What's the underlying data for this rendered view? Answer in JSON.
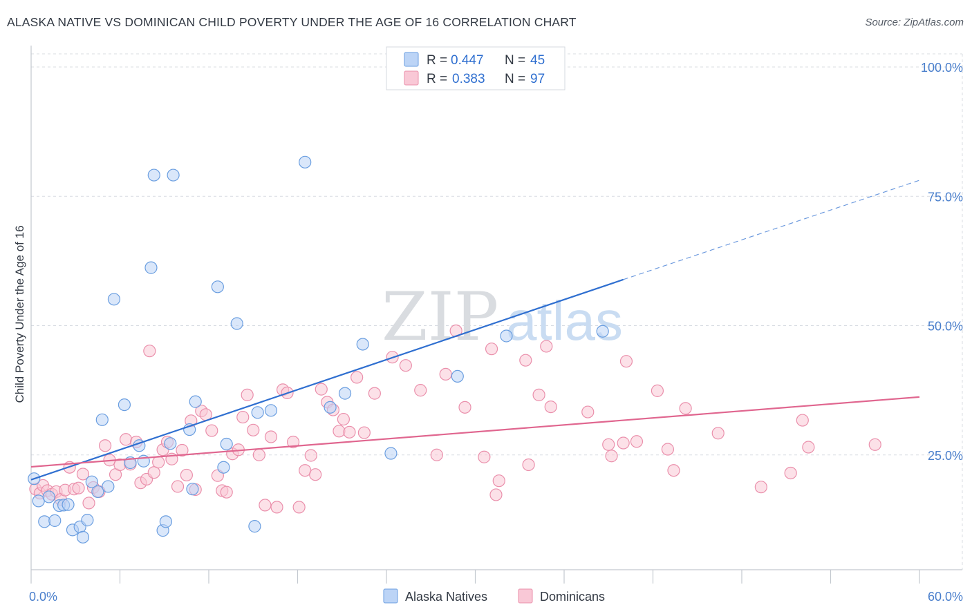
{
  "title": "ALASKA NATIVE VS DOMINICAN CHILD POVERTY UNDER THE AGE OF 16 CORRELATION CHART",
  "source": "Source: ZipAtlas.com",
  "watermark": {
    "zip": "ZIP",
    "atlas": "atlas"
  },
  "legend": {
    "r_label": "R =",
    "n_label": "N =",
    "rows": [
      {
        "r": "0.447",
        "n": "45"
      },
      {
        "r": "0.383",
        "n": "97"
      }
    ]
  },
  "colors": {
    "blue_fill": "#bcd4f6",
    "blue_stroke": "#6a9ee0",
    "blue_line": "#2f6fd0",
    "pink_fill": "#f9c8d6",
    "pink_stroke": "#ea8fab",
    "pink_line": "#e0668f",
    "grid": "#d8dce2"
  },
  "chart_data": {
    "type": "scatter",
    "title": "ALASKA NATIVE VS DOMINICAN CHILD POVERTY UNDER THE AGE OF 16 CORRELATION CHART",
    "xlabel": "",
    "ylabel": "Child Poverty Under the Age of 16",
    "xlim": [
      0,
      60
    ],
    "ylim": [
      0,
      105
    ],
    "x_tick_labels": [
      "0.0%",
      "60.0%"
    ],
    "y_ticks": [
      25,
      50,
      75,
      100
    ],
    "y_tick_labels": [
      "25.0%",
      "50.0%",
      "75.0%",
      "100.0%"
    ],
    "grid": true,
    "legend_position": "top-center",
    "series": [
      {
        "name": "Alaska Natives",
        "r": 0.447,
        "n": 45,
        "trend": {
          "x0": 0,
          "y0": 20.2,
          "x1": 40,
          "y1": 58.9,
          "dashed_to_x": 60,
          "dashed_to_y": 78.1
        },
        "points": [
          [
            0.2,
            20.4
          ],
          [
            0.5,
            16.1
          ],
          [
            0.9,
            12.1
          ],
          [
            1.2,
            16.9
          ],
          [
            1.6,
            12.3
          ],
          [
            1.9,
            15.2
          ],
          [
            2.2,
            15.3
          ],
          [
            2.5,
            15.4
          ],
          [
            2.8,
            10.5
          ],
          [
            3.3,
            11.1
          ],
          [
            3.5,
            9.1
          ],
          [
            3.8,
            12.4
          ],
          [
            4.1,
            19.8
          ],
          [
            4.5,
            17.9
          ],
          [
            4.8,
            31.8
          ],
          [
            5.2,
            18.9
          ],
          [
            5.6,
            55.1
          ],
          [
            6.3,
            34.7
          ],
          [
            6.7,
            23.5
          ],
          [
            7.3,
            26.8
          ],
          [
            7.6,
            23.8
          ],
          [
            8.1,
            61.2
          ],
          [
            8.3,
            79.1
          ],
          [
            8.9,
            10.4
          ],
          [
            9.1,
            12.1
          ],
          [
            9.4,
            27.2
          ],
          [
            9.6,
            79.1
          ],
          [
            10.7,
            29.9
          ],
          [
            10.9,
            18.4
          ],
          [
            11.1,
            35.3
          ],
          [
            12.6,
            57.5
          ],
          [
            13.0,
            22.6
          ],
          [
            13.2,
            27.1
          ],
          [
            13.9,
            50.4
          ],
          [
            15.1,
            11.2
          ],
          [
            15.3,
            33.2
          ],
          [
            16.2,
            33.6
          ],
          [
            18.5,
            81.6
          ],
          [
            20.2,
            34.2
          ],
          [
            21.2,
            36.9
          ],
          [
            22.4,
            46.4
          ],
          [
            24.3,
            25.3
          ],
          [
            28.8,
            40.2
          ],
          [
            32.1,
            48.0
          ],
          [
            38.6,
            48.9
          ]
        ]
      },
      {
        "name": "Dominicans",
        "r": 0.383,
        "n": 97,
        "trend": {
          "x0": 0,
          "y0": 22.7,
          "x1": 60,
          "y1": 36.2
        },
        "points": [
          [
            0.3,
            18.4
          ],
          [
            0.6,
            17.6
          ],
          [
            0.8,
            19.1
          ],
          [
            1.1,
            18.1
          ],
          [
            1.4,
            17.4
          ],
          [
            1.7,
            17.9
          ],
          [
            2.0,
            16.4
          ],
          [
            2.3,
            18.2
          ],
          [
            2.6,
            22.6
          ],
          [
            2.9,
            18.4
          ],
          [
            3.2,
            18.6
          ],
          [
            3.5,
            21.3
          ],
          [
            3.9,
            15.7
          ],
          [
            4.2,
            18.7
          ],
          [
            4.6,
            17.9
          ],
          [
            5.0,
            26.8
          ],
          [
            5.3,
            24.0
          ],
          [
            5.7,
            21.2
          ],
          [
            6.0,
            23.1
          ],
          [
            6.4,
            28.0
          ],
          [
            6.7,
            23.2
          ],
          [
            7.1,
            27.5
          ],
          [
            7.4,
            19.6
          ],
          [
            7.8,
            20.3
          ],
          [
            8.0,
            45.1
          ],
          [
            8.3,
            21.6
          ],
          [
            8.6,
            23.6
          ],
          [
            8.9,
            26.0
          ],
          [
            9.2,
            27.5
          ],
          [
            9.5,
            24.2
          ],
          [
            9.9,
            18.9
          ],
          [
            10.2,
            25.9
          ],
          [
            10.5,
            21.1
          ],
          [
            10.8,
            31.6
          ],
          [
            11.1,
            18.3
          ],
          [
            11.5,
            33.5
          ],
          [
            11.8,
            32.8
          ],
          [
            12.2,
            29.7
          ],
          [
            12.6,
            21.0
          ],
          [
            12.9,
            18.1
          ],
          [
            13.2,
            17.8
          ],
          [
            13.6,
            25.2
          ],
          [
            14.0,
            26.0
          ],
          [
            14.3,
            32.3
          ],
          [
            14.6,
            36.6
          ],
          [
            15.0,
            29.8
          ],
          [
            15.4,
            25.0
          ],
          [
            15.8,
            15.3
          ],
          [
            16.2,
            28.5
          ],
          [
            16.6,
            14.9
          ],
          [
            17.0,
            37.6
          ],
          [
            17.3,
            37.0
          ],
          [
            17.7,
            27.5
          ],
          [
            18.1,
            14.9
          ],
          [
            18.5,
            22.0
          ],
          [
            18.9,
            24.9
          ],
          [
            19.2,
            21.2
          ],
          [
            19.6,
            37.7
          ],
          [
            20.0,
            35.2
          ],
          [
            20.4,
            33.7
          ],
          [
            20.8,
            29.6
          ],
          [
            21.1,
            31.9
          ],
          [
            21.5,
            29.4
          ],
          [
            22.0,
            40.0
          ],
          [
            22.5,
            29.3
          ],
          [
            23.2,
            36.9
          ],
          [
            24.4,
            43.9
          ],
          [
            25.3,
            42.3
          ],
          [
            26.3,
            37.5
          ],
          [
            27.4,
            25.0
          ],
          [
            28.0,
            40.6
          ],
          [
            28.7,
            49.0
          ],
          [
            29.3,
            34.2
          ],
          [
            30.6,
            24.6
          ],
          [
            31.1,
            45.5
          ],
          [
            31.4,
            17.3
          ],
          [
            31.6,
            20.0
          ],
          [
            33.4,
            43.3
          ],
          [
            33.6,
            23.1
          ],
          [
            34.3,
            36.6
          ],
          [
            34.8,
            46.0
          ],
          [
            35.1,
            34.3
          ],
          [
            37.6,
            33.3
          ],
          [
            39.0,
            27.0
          ],
          [
            39.2,
            24.8
          ],
          [
            40.0,
            27.3
          ],
          [
            40.2,
            43.1
          ],
          [
            40.9,
            27.6
          ],
          [
            42.3,
            37.4
          ],
          [
            43.0,
            26.1
          ],
          [
            43.4,
            22.0
          ],
          [
            44.2,
            34.0
          ],
          [
            46.4,
            29.2
          ],
          [
            49.3,
            18.8
          ],
          [
            51.3,
            21.5
          ],
          [
            52.1,
            31.7
          ],
          [
            52.5,
            26.5
          ],
          [
            57.0,
            27.0
          ]
        ]
      }
    ]
  }
}
